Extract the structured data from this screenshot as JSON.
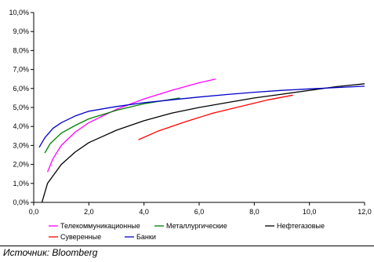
{
  "chart_data": {
    "type": "line",
    "title": "",
    "xlabel": "",
    "ylabel": "",
    "xlim": [
      0,
      12
    ],
    "ylim": [
      0,
      10
    ],
    "x_ticks": [
      "0,0",
      "2,0",
      "4,0",
      "6,0",
      "8,0",
      "10,0",
      "12,0"
    ],
    "y_ticks": [
      "0,0%",
      "1,0%",
      "2,0%",
      "3,0%",
      "4,0%",
      "5,0%",
      "6,0%",
      "7,0%",
      "8,0%",
      "9,0%",
      "10,0%"
    ],
    "grid": false,
    "legend_position": "bottom",
    "series": [
      {
        "name": "Телекоммуникационные",
        "color": "#ff00ff",
        "x": [
          0.5,
          0.7,
          1.0,
          1.5,
          2.0,
          3.0,
          4.0,
          5.0,
          6.0,
          6.6
        ],
        "y": [
          1.6,
          2.3,
          3.0,
          3.7,
          4.2,
          4.9,
          5.45,
          5.9,
          6.3,
          6.5
        ]
      },
      {
        "name": "Металлургические",
        "color": "#008000",
        "x": [
          0.4,
          0.6,
          1.0,
          1.5,
          2.0,
          3.0,
          4.0,
          5.3
        ],
        "y": [
          2.6,
          3.1,
          3.65,
          4.05,
          4.4,
          4.85,
          5.2,
          5.5
        ]
      },
      {
        "name": "Нефтегазовые",
        "color": "#000000",
        "x": [
          0.3,
          0.5,
          1.0,
          1.5,
          2.0,
          3.0,
          4.0,
          5.0,
          6.0,
          7.0,
          8.0,
          9.0,
          10.0,
          11.0,
          12.0
        ],
        "y": [
          0.0,
          1.0,
          2.0,
          2.65,
          3.15,
          3.8,
          4.3,
          4.7,
          5.0,
          5.25,
          5.5,
          5.7,
          5.9,
          6.1,
          6.25
        ]
      },
      {
        "name": "Суверенные",
        "color": "#ff0000",
        "x": [
          3.8,
          4.5,
          5.5,
          6.5,
          7.5,
          8.5,
          9.4
        ],
        "y": [
          3.3,
          3.75,
          4.25,
          4.7,
          5.05,
          5.4,
          5.65
        ]
      },
      {
        "name": "Банки",
        "color": "#0000cc",
        "x": [
          0.2,
          0.4,
          0.7,
          1.0,
          1.5,
          2.0,
          3.0,
          4.0,
          5.0,
          6.0,
          7.0,
          8.0,
          9.0,
          10.0,
          11.0,
          12.0
        ],
        "y": [
          2.9,
          3.4,
          3.9,
          4.2,
          4.55,
          4.8,
          5.05,
          5.25,
          5.4,
          5.55,
          5.68,
          5.8,
          5.9,
          5.98,
          6.05,
          6.12
        ]
      }
    ]
  },
  "source": "Источник: Bloomberg"
}
